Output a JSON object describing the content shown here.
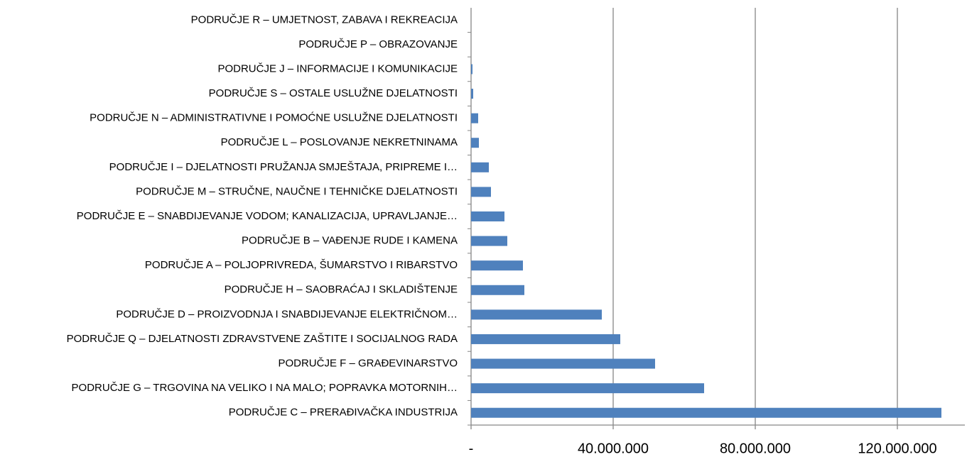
{
  "chart_data": {
    "type": "barh",
    "categories": [
      "PODRUČJE C – PRERAĐIVAČKA INDUSTRIJA",
      "PODRUČJE G – TRGOVINA NA VELIKO I NA MALO; POPRAVKA MOTORNIH…",
      "PODRUČJE F – GRAĐEVINARSTVO",
      "PODRUČJE Q – DJELATNOSTI ZDRAVSTVENE ZAŠTITE I SOCIJALNOG RADA",
      "PODRUČJE D – PROIZVODNJA I SNABDIJEVANJE ELEKTRIČNOM…",
      "PODRUČJE H – SAOBRAĆAJ I SKLADIŠTENJE",
      "PODRUČJE A – POLJOPRIVREDA,  ŠUMARSTVO I RIBARSTVO",
      "PODRUČJE B – VAĐENJE RUDE I KAMENA",
      "PODRUČJE E – SNABDIJEVANJE VODOM; KANALIZACIJA, UPRAVLJANJE…",
      "PODRUČJE M – STRUČNE, NAUČNE I TEHNIČKE DJELATNOSTI",
      "PODRUČJE I – DJELATNOSTI PRUŽANJA SMJEŠTAJA, PRIPREME I…",
      "PODRUČJE L – POSLOVANJE NEKRETNINAMA",
      "PODRUČJE N – ADMINISTRATIVNE I POMOĆNE USLUŽNE DJELATNOSTI",
      "PODRUČJE S – OSTALE USLUŽNE DJELATNOSTI",
      "PODRUČJE J – INFORMACIJE I KOMUNIKACIJE",
      "PODRUČJE P – OBRAZOVANJE",
      "PODRUČJE R – UMJETNOST, ZABAVA I REKREACIJA"
    ],
    "values": [
      132400000,
      65600000,
      51800000,
      42000000,
      36800000,
      15000000,
      14600000,
      10200000,
      9400000,
      5600000,
      5000000,
      2200000,
      2000000,
      600000,
      400000,
      0,
      0
    ],
    "color": "#4f81bd",
    "xlim": [
      0,
      139000000
    ],
    "xticks": [
      {
        "value": 0,
        "label": "-"
      },
      {
        "value": 40000000,
        "label": "40.000.000"
      },
      {
        "value": 80000000,
        "label": "80.000.000"
      },
      {
        "value": 120000000,
        "label": "120.000.000"
      }
    ],
    "grid": true
  }
}
